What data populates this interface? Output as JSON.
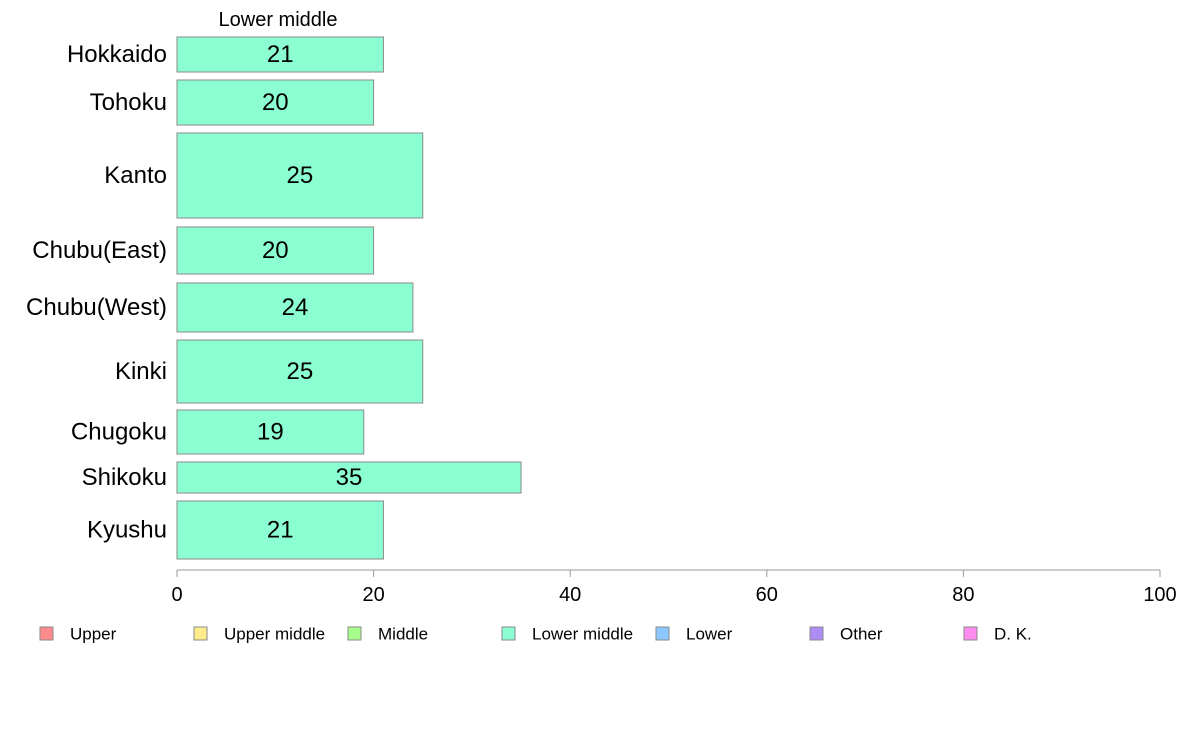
{
  "chart_data": {
    "type": "bar",
    "orientation": "horizontal",
    "title": "Lower middle",
    "categories": [
      "Hokkaido",
      "Tohoku",
      "Kanto",
      "Chubu(East)",
      "Chubu(West)",
      "Kinki",
      "Chugoku",
      "Shikoku",
      "Kyushu"
    ],
    "values": [
      21,
      20,
      25,
      20,
      24,
      25,
      19,
      35,
      21
    ],
    "bar_color": "#8cffd2",
    "xlim": [
      0,
      100
    ],
    "xticks": [
      "0",
      "20",
      "40",
      "60",
      "80",
      "100"
    ],
    "xlabel": "",
    "ylabel": "",
    "grid": false,
    "legend_position": "bottom",
    "legend": [
      {
        "label": "Upper",
        "color": "#ff8c8c"
      },
      {
        "label": "Upper middle",
        "color": "#ffec8c"
      },
      {
        "label": "Middle",
        "color": "#a6ff8c"
      },
      {
        "label": "Lower middle",
        "color": "#8cffd2"
      },
      {
        "label": "Lower",
        "color": "#8cc8ff"
      },
      {
        "label": "Other",
        "color": "#ad8cf5"
      },
      {
        "label": "D. K.",
        "color": "#ff8cf0"
      }
    ]
  }
}
